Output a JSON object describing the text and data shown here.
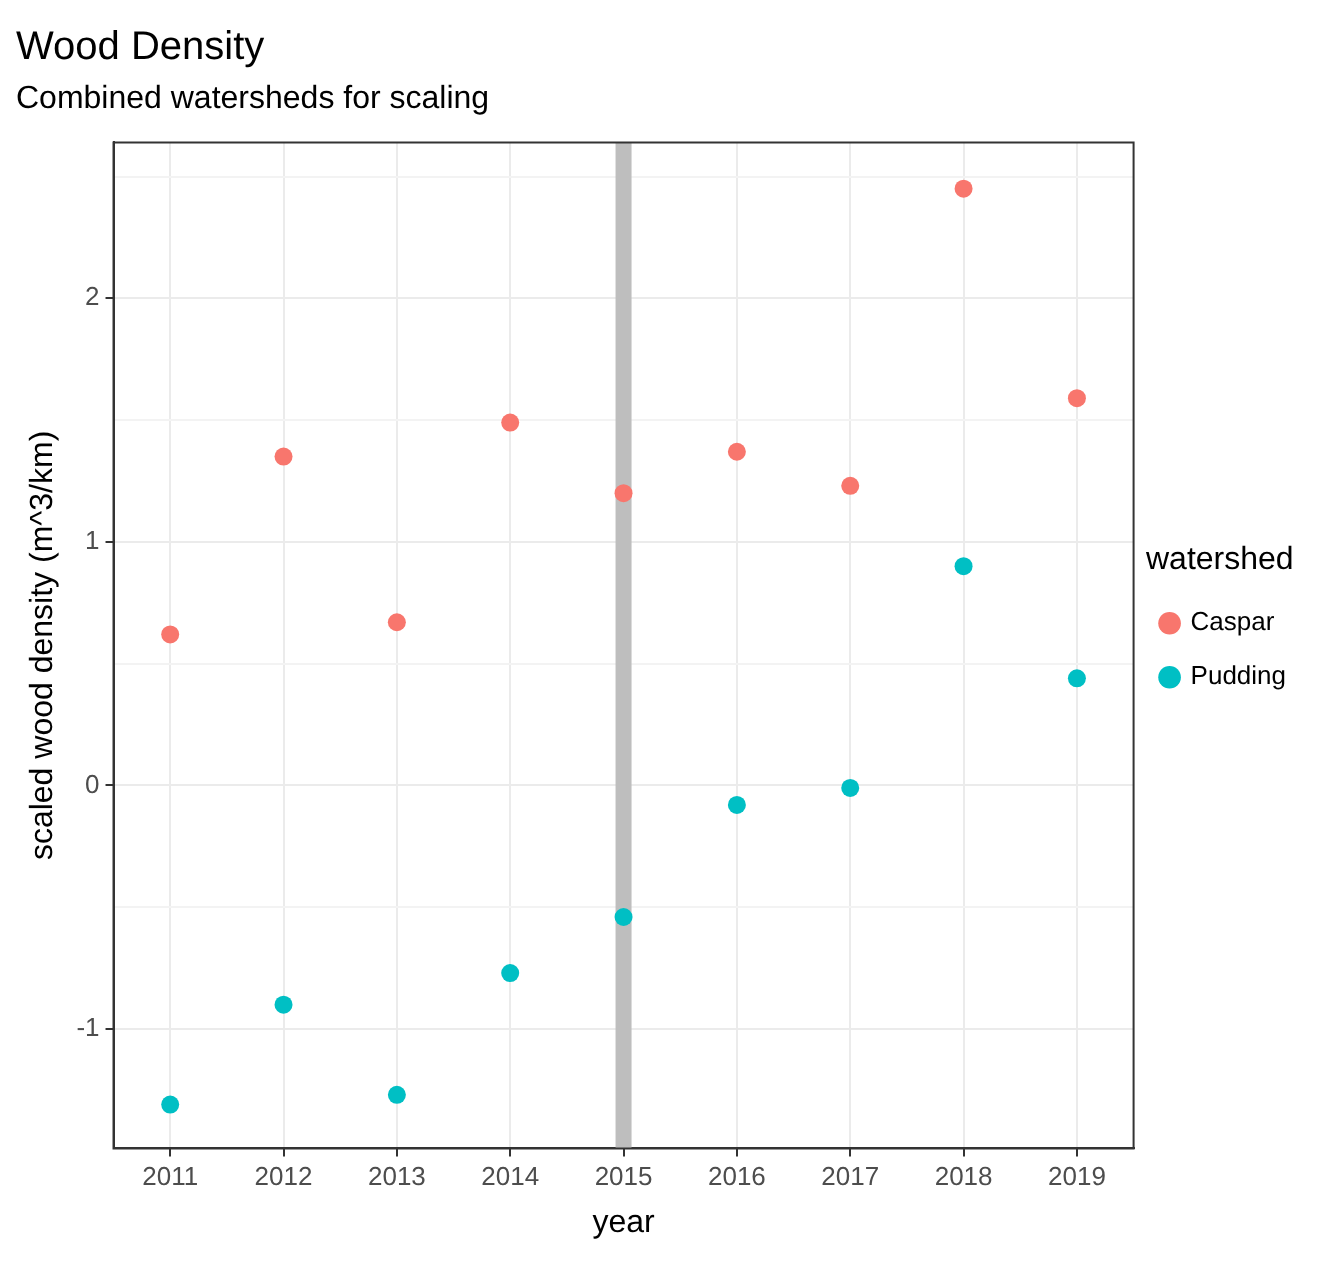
{
  "chart_data": {
    "type": "scatter",
    "title": "Wood Density",
    "subtitle": "Combined watersheds for scaling",
    "xlabel": "year",
    "ylabel": "scaled wood density (m^3/km)",
    "legend_title": "watershed",
    "legend": "right",
    "marker": "circle",
    "grid": true,
    "categories": [
      "2011",
      "2012",
      "2013",
      "2014",
      "2015",
      "2016",
      "2017",
      "2018",
      "2019"
    ],
    "ylim": [
      -1.49,
      2.64
    ],
    "yticks": [
      -1,
      {
        "value": -0.5,
        "label": null
      },
      0,
      {
        "value": 0.5,
        "label": null
      },
      1,
      {
        "value": 1.5,
        "label": null
      },
      2,
      {
        "value": 2.5,
        "label": null
      }
    ],
    "ref_lines": [
      {
        "axis": "x",
        "value": "2015",
        "color": "#bebebe"
      }
    ],
    "series": [
      {
        "name": "Caspar",
        "color": "#f8766d",
        "values": [
          0.62,
          1.35,
          0.67,
          1.49,
          1.2,
          1.37,
          1.23,
          2.45,
          1.59
        ]
      },
      {
        "name": "Pudding",
        "color": "#00bfc4",
        "values": [
          -1.31,
          -0.9,
          -1.27,
          -0.77,
          -0.54,
          -0.08,
          -0.01,
          0.9,
          0.44
        ]
      }
    ]
  }
}
